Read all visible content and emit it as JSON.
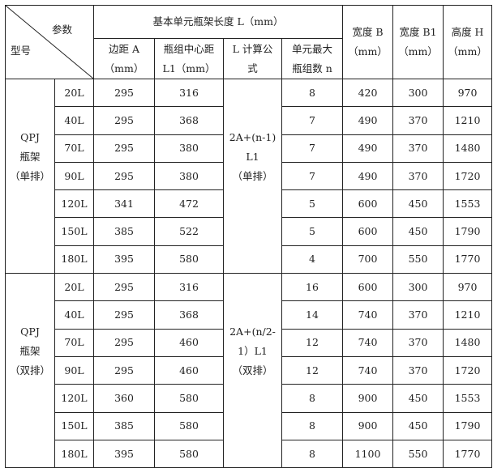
{
  "header": {
    "corner_param": "参数",
    "corner_model": "型号",
    "group": "基本单元瓶架长度 L（mm）",
    "cols": [
      [
        "边距 A",
        "（mm）"
      ],
      [
        "瓶组中心距",
        "L1（mm）"
      ],
      [
        "L 计算公",
        "式"
      ],
      [
        "单元最大",
        "瓶组数 n"
      ]
    ],
    "width_b": [
      "宽度 B",
      "（mm）"
    ],
    "width_b1": [
      "宽度 B1",
      "（mm）"
    ],
    "height_h": [
      "高度 H",
      "（mm）"
    ]
  },
  "groups": [
    {
      "model": [
        "QPJ",
        "瓶架",
        "（单排）"
      ],
      "formula": [
        "2A+(n-1)",
        "L1",
        "（单排）"
      ],
      "rows": [
        [
          "20L",
          "295",
          "316",
          "8",
          "420",
          "300",
          "970"
        ],
        [
          "40L",
          "295",
          "368",
          "7",
          "490",
          "370",
          "1210"
        ],
        [
          "70L",
          "295",
          "380",
          "7",
          "490",
          "370",
          "1480"
        ],
        [
          "90L",
          "295",
          "380",
          "7",
          "490",
          "370",
          "1720"
        ],
        [
          "120L",
          "341",
          "472",
          "5",
          "600",
          "450",
          "1553"
        ],
        [
          "150L",
          "385",
          "522",
          "5",
          "600",
          "450",
          "1790"
        ],
        [
          "180L",
          "395",
          "580",
          "4",
          "700",
          "550",
          "1770"
        ]
      ]
    },
    {
      "model": [
        "QPJ",
        "瓶架",
        "（双排）"
      ],
      "formula": [
        "2A+(n/2-",
        "1）L1",
        "（双排）"
      ],
      "rows": [
        [
          "20L",
          "295",
          "316",
          "16",
          "600",
          "300",
          "970"
        ],
        [
          "40L",
          "295",
          "368",
          "14",
          "740",
          "370",
          "1210"
        ],
        [
          "70L",
          "295",
          "460",
          "12",
          "740",
          "370",
          "1480"
        ],
        [
          "90L",
          "295",
          "460",
          "12",
          "740",
          "370",
          "1720"
        ],
        [
          "120L",
          "360",
          "580",
          "8",
          "900",
          "450",
          "1553"
        ],
        [
          "150L",
          "385",
          "580",
          "8",
          "900",
          "450",
          "1790"
        ],
        [
          "180L",
          "395",
          "580",
          "8",
          "1100",
          "550",
          "1770"
        ]
      ]
    }
  ]
}
